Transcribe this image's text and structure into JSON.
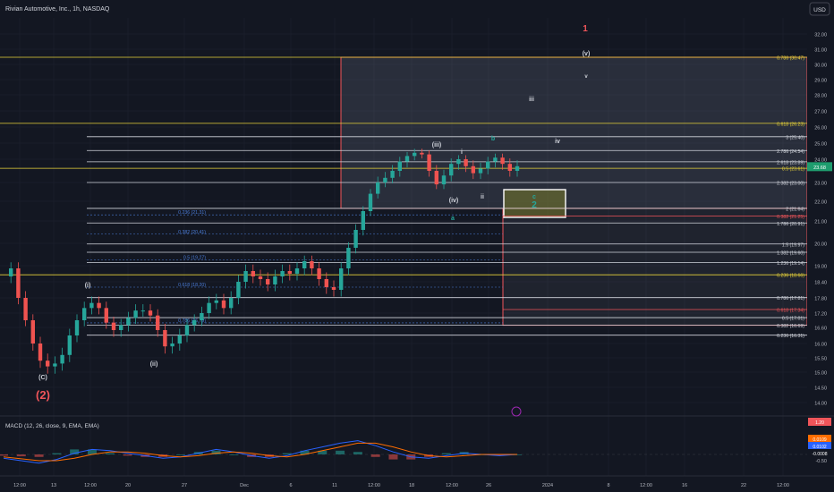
{
  "header": {
    "symbol_title": "Rivian Automotive, Inc., 1h, NASDAQ",
    "currency_button": "USD"
  },
  "colors": {
    "background": "#131722",
    "grid": "#1f2330",
    "up_candle": "#26a69a",
    "down_candle": "#ef5350",
    "white_fib": "#d1d4dc",
    "yellow_fib": "#e8d33a",
    "red_fib": "#f0555a",
    "blue_fib": "#4a7bd6",
    "last_price_bg": "#1e9d6e",
    "macd_line": "#2962ff",
    "signal_line": "#ff6d00"
  },
  "chart_data": [
    {
      "type": "line",
      "title": "Rivian Automotive, Inc., 1h, NASDAQ",
      "xlabel": "",
      "ylabel": "",
      "x_ticks": [
        "12:00",
        "13",
        "12:00",
        "20",
        "27",
        "Dec",
        "6",
        "11",
        "12:00",
        "18",
        "12:00",
        "26",
        "2024",
        "8",
        "12:00",
        "16",
        "22",
        "12:00"
      ],
      "y_ticks": [
        14.0,
        14.5,
        15.0,
        15.5,
        16.0,
        16.6,
        17.2,
        17.8,
        18.4,
        19.0,
        20.0,
        21.0,
        22.0,
        23.0,
        24.0,
        25.0,
        26.0,
        27.0,
        28.0,
        29.0,
        30.0,
        31.0,
        32.0
      ],
      "ylim": [
        13.6,
        32.5
      ],
      "last_price": "23.68",
      "series": [
        {
          "values": [
            18.6,
            18.9,
            17.8,
            16.9,
            16.0,
            15.4,
            15.2,
            15.3,
            15.6,
            16.3,
            16.9,
            17.4,
            17.6,
            17.4,
            16.8,
            16.5,
            16.7,
            17.0,
            17.3,
            17.3,
            17.1,
            16.5,
            15.9,
            16.0,
            16.3,
            16.7,
            16.9,
            17.2,
            17.6,
            17.7,
            17.4,
            17.8,
            18.4,
            18.8,
            18.6,
            18.5,
            18.3,
            18.6,
            18.8,
            18.7,
            18.9,
            19.2,
            18.9,
            18.5,
            18.2,
            18.1,
            18.9,
            19.8,
            20.6,
            21.5,
            22.4,
            23.0,
            23.2,
            23.5,
            23.9,
            24.2,
            24.4,
            24.3,
            23.5,
            22.9,
            23.3,
            23.8,
            24.0,
            23.7,
            23.4,
            23.6,
            23.9,
            24.1,
            23.8,
            23.5,
            23.7
          ]
        }
      ],
      "fib_levels": [
        {
          "label": "0.786 (30.47)",
          "value": 30.47,
          "color": "yellow"
        },
        {
          "label": "0.618 (26.23)",
          "value": 26.23,
          "color": "yellow"
        },
        {
          "label": "3 (25.40)",
          "value": 25.4,
          "color": "white"
        },
        {
          "label": "2.786 (24.54)",
          "value": 24.54,
          "color": "white"
        },
        {
          "label": "2.618 (23.89)",
          "value": 23.89,
          "color": "white"
        },
        {
          "label": "0.5 (23.61)",
          "value": 23.61,
          "color": "yellow"
        },
        {
          "label": "2.382 (23.00)",
          "value": 23.0,
          "color": "white"
        },
        {
          "label": "2 (21.64)",
          "value": 21.64,
          "color": "white"
        },
        {
          "label": "0.382 (21.25)",
          "value": 21.25,
          "color": "red"
        },
        {
          "label": "1.786 (20.91)",
          "value": 20.91,
          "color": "white"
        },
        {
          "label": "1.5 (19.97)",
          "value": 19.97,
          "color": "white"
        },
        {
          "label": "1.382 (19.60)",
          "value": 19.6,
          "color": "white"
        },
        {
          "label": "1.236 (19.14)",
          "value": 19.14,
          "color": "white"
        },
        {
          "label": "0.236 (18.66)",
          "value": 18.66,
          "color": "yellow"
        },
        {
          "label": "0.786 (17.81)",
          "value": 17.81,
          "color": "white"
        },
        {
          "label": "0.618 (17.34)",
          "value": 17.34,
          "color": "red"
        },
        {
          "label": "0.5 (17.01)",
          "value": 17.01,
          "color": "white"
        },
        {
          "label": "0.382 (16.69)",
          "value": 16.69,
          "color": "white"
        },
        {
          "label": "0.236 (16.31)",
          "value": 16.31,
          "color": "white"
        }
      ],
      "blue_fib_labels": [
        {
          "label": "0.236 (21.31)",
          "value": 21.31
        },
        {
          "label": "0.382 (20.41)",
          "value": 20.41
        },
        {
          "label": "0.5 (19.27)",
          "value": 19.27
        },
        {
          "label": "0.618 (18.20)",
          "value": 18.2
        },
        {
          "label": "0.786 (16.79)",
          "value": 16.79
        }
      ],
      "wave_labels": [
        {
          "text": "1",
          "color": "red"
        },
        {
          "text": "(v)",
          "color": "white"
        },
        {
          "text": "v",
          "color": "white"
        },
        {
          "text": "iii",
          "color": "white"
        },
        {
          "text": "iv",
          "color": "white"
        },
        {
          "text": "(iii)",
          "color": "white"
        },
        {
          "text": "i",
          "color": "white"
        },
        {
          "text": "ii",
          "color": "white"
        },
        {
          "text": "(iv)",
          "color": "white"
        },
        {
          "text": "b",
          "color": "teal"
        },
        {
          "text": "a",
          "color": "teal"
        },
        {
          "text": "c",
          "color": "teal"
        },
        {
          "text": "2",
          "color": "teal"
        },
        {
          "text": "(i)",
          "color": "white"
        },
        {
          "text": "(ii)",
          "color": "white"
        },
        {
          "text": "(C)",
          "color": "white"
        },
        {
          "text": "(2)",
          "color": "red"
        }
      ]
    },
    {
      "type": "line",
      "title": "MACD (12, 26, close, 9, EMA, EMA)",
      "y_ticks": [
        1.2,
        -0.5
      ],
      "value_badges": [
        "1.20",
        "0.0109",
        "0.0102",
        "-0.0008"
      ],
      "series": [
        {
          "name": "MACD",
          "values": [
            -0.3,
            -0.5,
            -0.7,
            -0.4,
            0.1,
            0.4,
            0.3,
            0.1,
            -0.1,
            -0.3,
            -0.2,
            0.1,
            0.4,
            0.2,
            -0.1,
            -0.3,
            -0.1,
            0.3,
            0.6,
            0.9,
            1.1,
            0.7,
            0.2,
            -0.2,
            -0.3,
            -0.1,
            0.1,
            0.0,
            -0.1,
            0.0
          ]
        },
        {
          "name": "Signal",
          "values": [
            -0.2,
            -0.35,
            -0.5,
            -0.5,
            -0.3,
            0.0,
            0.2,
            0.2,
            0.1,
            -0.1,
            -0.2,
            -0.1,
            0.1,
            0.2,
            0.1,
            -0.1,
            -0.2,
            0.0,
            0.3,
            0.6,
            0.9,
            0.9,
            0.6,
            0.2,
            -0.1,
            -0.2,
            -0.1,
            0.0,
            0.0,
            0.0
          ]
        }
      ]
    }
  ]
}
